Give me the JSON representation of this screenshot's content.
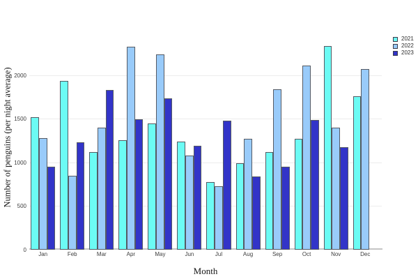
{
  "chart_data": {
    "type": "bar",
    "title": "",
    "xlabel": "Month",
    "ylabel": "Number of penguins (per night average)",
    "categories": [
      "Jan",
      "Feb",
      "Mar",
      "Apr",
      "May",
      "Jun",
      "Jul",
      "Aug",
      "Sep",
      "Oct",
      "Nov",
      "Dec"
    ],
    "series": [
      {
        "name": "2021",
        "color": "#6cfbf4",
        "values": [
          1520,
          1940,
          1120,
          1260,
          1450,
          1240,
          780,
          990,
          1120,
          1270,
          2340,
          1760
        ]
      },
      {
        "name": "2022",
        "color": "#99cbfa",
        "values": [
          1280,
          850,
          1400,
          2330,
          2240,
          1080,
          730,
          1270,
          1840,
          2110,
          1400,
          2070
        ]
      },
      {
        "name": "2023",
        "color": "#3234c8",
        "values": [
          950,
          1230,
          1830,
          1500,
          1740,
          1190,
          1480,
          840,
          950,
          1490,
          1180,
          null
        ]
      }
    ],
    "y_ticks": [
      0,
      500,
      1000,
      1500,
      2000
    ],
    "ylim": [
      0,
      2800
    ],
    "grid": true,
    "legend_position": "top-right",
    "bar_edge_color": "#555a63",
    "gridline_color": "#ececec",
    "axis_line_color": "#c4c4c4"
  }
}
